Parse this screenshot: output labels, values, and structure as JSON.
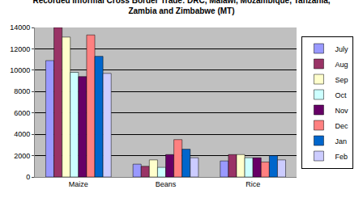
{
  "chart_data": {
    "type": "bar",
    "title": "Recorded Informal Cross Border Trade: DRC, Malawi, Mozambique, Tanzania,\nZambia and Zimbabwe (MT)",
    "categories": [
      "Maize",
      "Beans",
      "Rice"
    ],
    "series": [
      {
        "name": "July",
        "color": "#9999FF",
        "values": [
          10900,
          1200,
          1500
        ]
      },
      {
        "name": "Aug",
        "color": "#993366",
        "values": [
          14000,
          1000,
          2100
        ]
      },
      {
        "name": "Sep",
        "color": "#FFFFCC",
        "values": [
          13100,
          1600,
          2100
        ]
      },
      {
        "name": "Oct",
        "color": "#CCFFFF",
        "values": [
          9800,
          900,
          1800
        ]
      },
      {
        "name": "Nov",
        "color": "#660066",
        "values": [
          9400,
          2100,
          1800
        ]
      },
      {
        "name": "Dec",
        "color": "#FF8080",
        "values": [
          13300,
          3500,
          1400
        ]
      },
      {
        "name": "Jan",
        "color": "#0066CC",
        "values": [
          11300,
          2600,
          2000
        ]
      },
      {
        "name": "Feb",
        "color": "#CCCCFF",
        "values": [
          9700,
          1800,
          1600
        ]
      }
    ],
    "ylim": [
      0,
      14000
    ],
    "yticks": [
      0,
      2000,
      4000,
      6000,
      8000,
      10000,
      12000,
      14000
    ],
    "grid": true,
    "legend": "right"
  }
}
